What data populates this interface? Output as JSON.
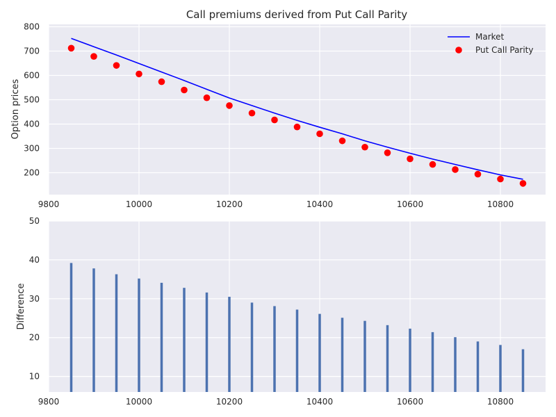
{
  "chart_data": [
    {
      "type": "line",
      "title": "Call premiums derived from Put Call Parity",
      "xlabel": "",
      "ylabel": "Option prices",
      "xlim": [
        9800,
        10900
      ],
      "ylim": [
        110,
        810
      ],
      "xticks": [
        9800,
        10000,
        10200,
        10400,
        10600,
        10800
      ],
      "yticks": [
        200,
        300,
        400,
        500,
        600,
        700,
        800
      ],
      "grid": true,
      "legend_position": "top-right",
      "x": [
        9850,
        9900,
        9950,
        10000,
        10050,
        10100,
        10150,
        10200,
        10250,
        10300,
        10350,
        10400,
        10450,
        10500,
        10550,
        10600,
        10650,
        10700,
        10750,
        10800,
        10850
      ],
      "series": [
        {
          "name": "Market",
          "style": "line",
          "color": "#0000ff",
          "values": [
            752,
            718,
            684,
            649,
            614,
            579,
            543,
            507,
            476,
            445,
            415,
            387,
            360,
            331,
            305,
            280,
            256,
            234,
            212,
            191,
            173
          ]
        },
        {
          "name": "Put Call Parity",
          "style": "markers",
          "color": "#ff0000",
          "values": [
            712,
            678,
            641,
            606,
            574,
            540,
            508,
            476,
            445,
            417,
            388,
            360,
            331,
            305,
            282,
            257,
            234,
            213,
            194,
            174,
            156
          ]
        }
      ]
    },
    {
      "type": "bar",
      "xlabel": "",
      "ylabel": "Difference",
      "xlim": [
        9800,
        10900
      ],
      "ylim": [
        6,
        50
      ],
      "xticks": [
        9800,
        10000,
        10200,
        10400,
        10600,
        10800
      ],
      "yticks": [
        10,
        20,
        30,
        40,
        50
      ],
      "grid": true,
      "color": "#4c72b0",
      "x": [
        9850,
        9900,
        9950,
        10000,
        10050,
        10100,
        10150,
        10200,
        10250,
        10300,
        10350,
        10400,
        10450,
        10500,
        10550,
        10600,
        10650,
        10700,
        10750,
        10800,
        10850
      ],
      "values": [
        39.2,
        37.8,
        36.3,
        35.2,
        34.1,
        32.8,
        31.6,
        30.5,
        29.0,
        28.1,
        27.2,
        26.1,
        25.1,
        24.3,
        23.2,
        22.3,
        21.4,
        20.1,
        19.0,
        18.1,
        17.0
      ]
    }
  ]
}
